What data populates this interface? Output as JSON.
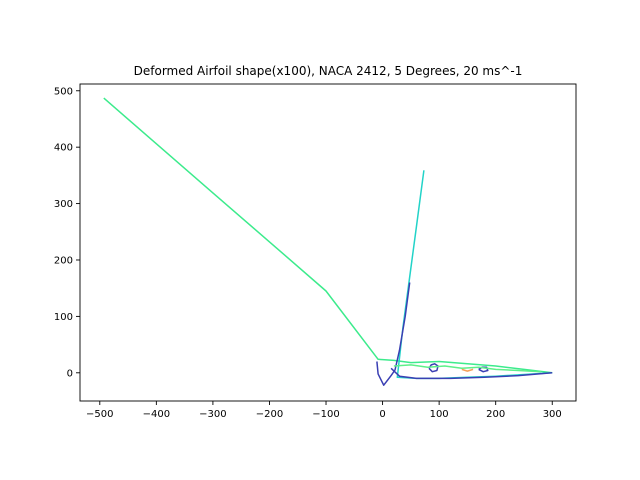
{
  "chart_data": {
    "type": "line",
    "title": "Deformed Airfoil shape(x100), NACA 2412, 5 Degrees, 20 ms^-1",
    "xlabel": "",
    "ylabel": "",
    "xlim": [
      -535,
      342
    ],
    "ylim": [
      -50,
      512
    ],
    "xticks": [
      -500,
      -400,
      -300,
      -200,
      -100,
      0,
      100,
      200,
      300
    ],
    "xtick_labels": [
      "−500",
      "−400",
      "−300",
      "−200",
      "−100",
      "0",
      "100",
      "200",
      "300"
    ],
    "yticks": [
      0,
      100,
      200,
      300,
      400,
      500
    ],
    "ytick_labels": [
      "0",
      "100",
      "200",
      "300",
      "400",
      "500"
    ],
    "grid": false,
    "legend": "none",
    "series": [
      {
        "color": "#3ceb8c",
        "points": [
          [
            -493,
            487
          ],
          [
            -400,
            406
          ],
          [
            -300,
            319
          ],
          [
            -200,
            232
          ],
          [
            -100,
            145
          ],
          [
            -8,
            24
          ],
          [
            20,
            22
          ],
          [
            50,
            18
          ],
          [
            100,
            20
          ],
          [
            150,
            16
          ],
          [
            200,
            12
          ],
          [
            250,
            6
          ],
          [
            300,
            0
          ]
        ]
      },
      {
        "color": "#22d3c8",
        "points": [
          [
            73,
            359
          ],
          [
            60,
            260
          ],
          [
            48,
            170
          ],
          [
            36,
            80
          ],
          [
            26,
            -8
          ],
          [
            60,
            -10
          ],
          [
            100,
            -10
          ],
          [
            150,
            -8
          ],
          [
            200,
            -6
          ],
          [
            250,
            -3
          ],
          [
            300,
            0
          ]
        ]
      },
      {
        "color": "#3a3fb3",
        "points": [
          [
            -10,
            20
          ],
          [
            -8,
            -2
          ],
          [
            2,
            -22
          ],
          [
            15,
            -5
          ],
          [
            22,
            5
          ],
          [
            30,
            40
          ],
          [
            40,
            100
          ],
          [
            48,
            160
          ]
        ]
      },
      {
        "color": "#3a3fb3",
        "points": [
          [
            15,
            8
          ],
          [
            30,
            -6
          ],
          [
            60,
            -10
          ],
          [
            120,
            -10
          ],
          [
            180,
            -8
          ],
          [
            240,
            -5
          ],
          [
            300,
            0
          ]
        ]
      },
      {
        "color": "#3a3fb3",
        "points": [
          [
            82,
            8
          ],
          [
            86,
            14
          ],
          [
            92,
            16
          ],
          [
            98,
            12
          ],
          [
            96,
            4
          ],
          [
            88,
            2
          ],
          [
            82,
            8
          ]
        ]
      },
      {
        "color": "#3a3fb3",
        "points": [
          [
            170,
            6
          ],
          [
            176,
            10
          ],
          [
            184,
            10
          ],
          [
            186,
            4
          ],
          [
            178,
            2
          ],
          [
            170,
            6
          ]
        ]
      },
      {
        "color": "#5ef08a",
        "points": [
          [
            20,
            12
          ],
          [
            50,
            14
          ],
          [
            80,
            10
          ],
          [
            110,
            12
          ],
          [
            140,
            8
          ],
          [
            170,
            10
          ],
          [
            200,
            6
          ],
          [
            240,
            4
          ],
          [
            280,
            2
          ]
        ]
      },
      {
        "color": "#f5a05a",
        "points": [
          [
            140,
            6
          ],
          [
            150,
            3
          ],
          [
            160,
            6
          ]
        ]
      }
    ]
  }
}
